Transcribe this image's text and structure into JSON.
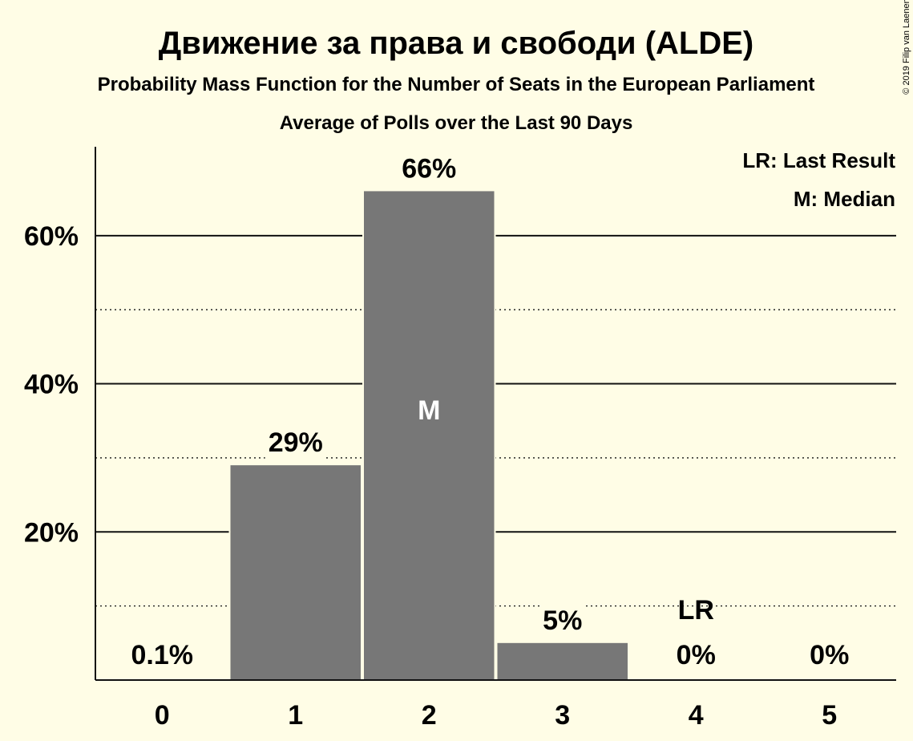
{
  "chart_data": {
    "type": "bar",
    "title": "Движение за права и свободи (ALDE)",
    "subtitle": "Probability Mass Function for the Number of Seats in the European Parliament",
    "subtitle2": "Average of Polls over the Last 90 Days",
    "categories": [
      "0",
      "1",
      "2",
      "3",
      "4",
      "5"
    ],
    "values": [
      0.1,
      29,
      66,
      5,
      0,
      0
    ],
    "data_labels": [
      "0.1%",
      "29%",
      "66%",
      "5%",
      "0%",
      "0%"
    ],
    "ylim": [
      0,
      72
    ],
    "yticks": [
      20,
      40,
      60
    ],
    "ytick_labels": [
      "20%",
      "40%",
      "60%"
    ],
    "minor_gridlines": [
      10,
      30,
      50
    ],
    "median_category": "2",
    "median_label": "M",
    "last_result_category": "4",
    "last_result_label": "LR",
    "legend": [
      "LR: Last Result",
      "M: Median"
    ],
    "legend_position": "top-right",
    "copyright": "© 2019 Filip van Laenen",
    "bar_color": "#777777",
    "background_color": "#fffde6"
  }
}
